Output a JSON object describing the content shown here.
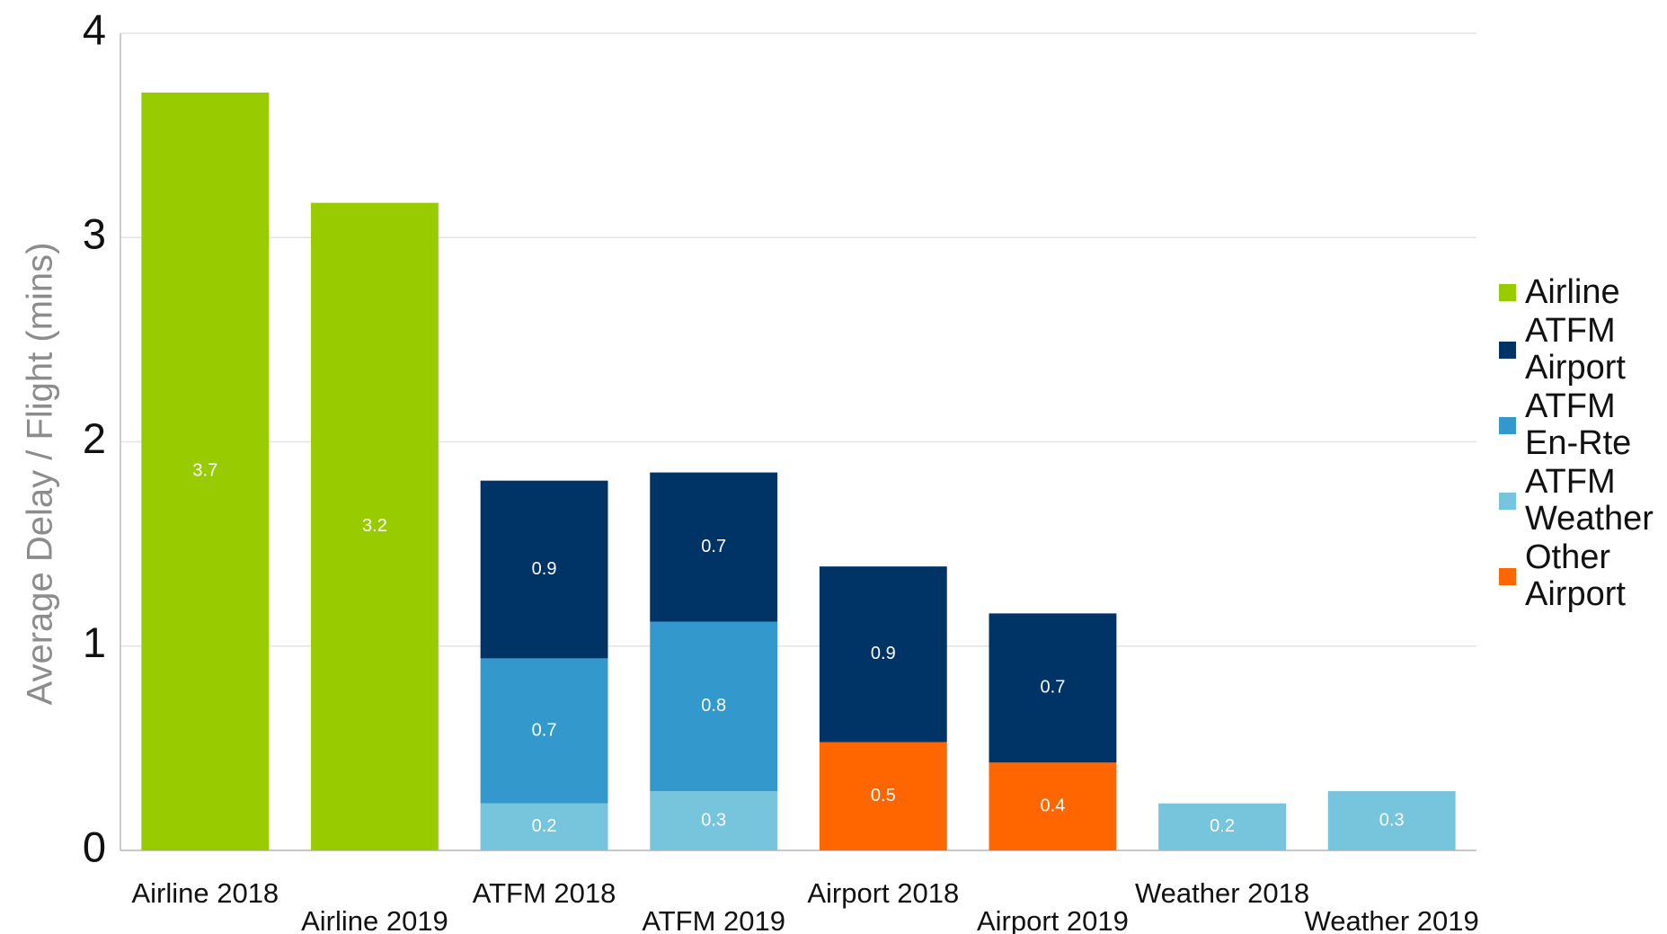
{
  "chart_data": {
    "type": "stacked_bar",
    "y_axis_label": "Average Delay / Flight (mins)",
    "categories": [
      "Airline 2018",
      "Airline 2019",
      "ATFM 2018",
      "ATFM 2019",
      "Airport 2018",
      "Airport 2019",
      "Weather 2018",
      "Weather 2019"
    ],
    "series": [
      {
        "name": "Airline",
        "color": "#99cc00",
        "values": [
          3.71,
          3.17,
          null,
          null,
          null,
          null,
          null,
          null
        ],
        "value_labels": [
          "3.7",
          "3.2",
          null,
          null,
          null,
          null,
          null,
          null
        ]
      },
      {
        "name": "ATFM Airport",
        "color": "#003366",
        "values": [
          null,
          null,
          0.87,
          0.73,
          0.86,
          0.73,
          null,
          null
        ],
        "value_labels": [
          null,
          null,
          "0.9",
          "0.7",
          "0.9",
          "0.7",
          null,
          null
        ]
      },
      {
        "name": "ATFM En-Rte",
        "color": "#3399cc",
        "values": [
          null,
          null,
          0.71,
          0.83,
          null,
          null,
          null,
          null
        ],
        "value_labels": [
          null,
          null,
          "0.7",
          "0.8",
          null,
          null,
          null,
          null
        ]
      },
      {
        "name": "ATFM Weather",
        "color": "#77c4dd",
        "values": [
          null,
          null,
          0.23,
          0.29,
          null,
          null,
          0.23,
          0.29
        ],
        "value_labels": [
          null,
          null,
          "0.2",
          "0.3",
          null,
          null,
          "0.2",
          "0.3"
        ]
      },
      {
        "name": "Other Airport",
        "color": "#ff6600",
        "values": [
          null,
          null,
          null,
          null,
          0.53,
          0.43,
          null,
          null
        ],
        "value_labels": [
          null,
          null,
          null,
          null,
          "0.5",
          "0.4",
          null,
          null
        ]
      }
    ],
    "ylim": [
      0,
      4
    ],
    "yticks": [
      0,
      1,
      2,
      3,
      4
    ],
    "grid": true,
    "legend": "right"
  }
}
